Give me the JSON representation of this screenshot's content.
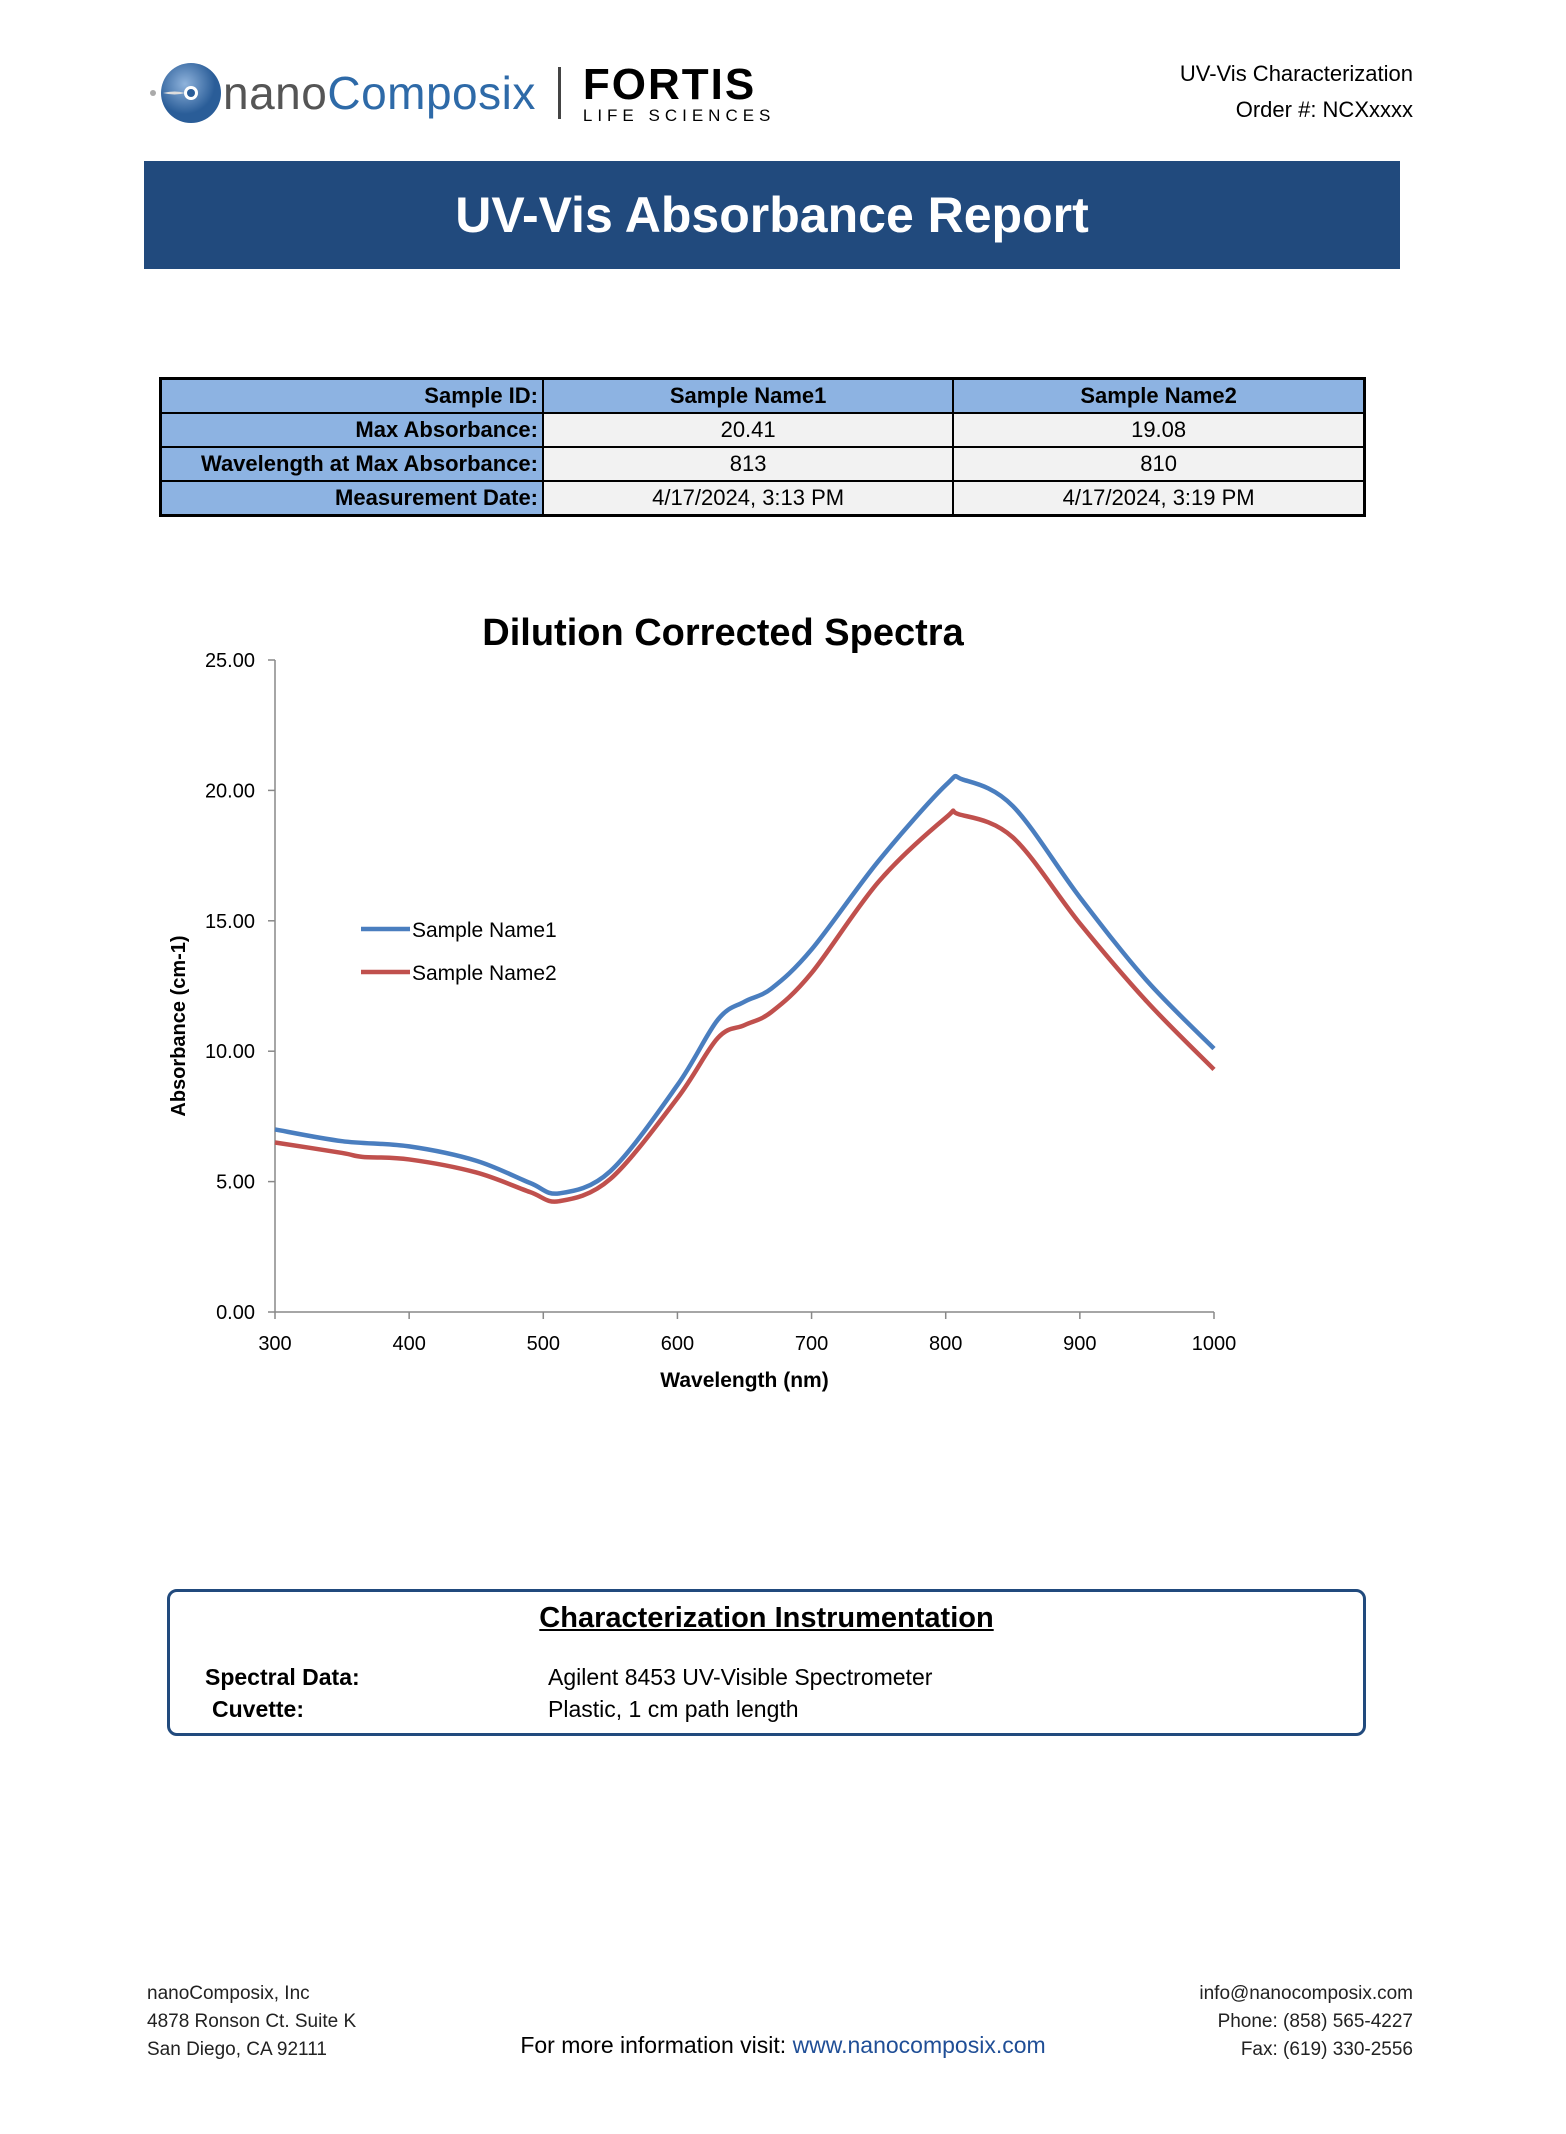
{
  "header": {
    "logo_nano": "nano",
    "logo_composix": "Composix",
    "logo_fortis": "FORTIS",
    "logo_fortis_sub": "LIFE SCIENCES",
    "report_type": "UV-Vis Characterization",
    "order": "Order #: NCXxxxx"
  },
  "title": "UV-Vis Absorbance Report",
  "summary_table": {
    "labels": [
      "Sample ID:",
      "Max Absorbance:",
      "Wavelength at Max Absorbance:",
      "Measurement Date:"
    ],
    "samples": [
      {
        "name": "Sample Name1",
        "max_absorbance": "20.41",
        "wavelength": "813",
        "date": "4/17/2024, 3:13 PM"
      },
      {
        "name": "Sample Name2",
        "max_absorbance": "19.08",
        "wavelength": "810",
        "date": "4/17/2024, 3:19 PM"
      }
    ]
  },
  "chart_data": {
    "type": "line",
    "title": "Dilution Corrected Spectra",
    "xlabel": "Wavelength (nm)",
    "ylabel": "Absorbance (cm-1)",
    "xlim": [
      300,
      1000
    ],
    "ylim": [
      0,
      25
    ],
    "xticks": [
      "300",
      "400",
      "500",
      "600",
      "700",
      "800",
      "900",
      "1000"
    ],
    "yticks": [
      "0.00",
      "5.00",
      "10.00",
      "15.00",
      "20.00",
      "25.00"
    ],
    "grid": false,
    "legend_position": "left-middle",
    "series": [
      {
        "name": "Sample Name1",
        "color": "#4a7ebf",
        "x": [
          300,
          350,
          400,
          450,
          490,
          512,
          550,
          600,
          630,
          650,
          670,
          700,
          750,
          800,
          813,
          850,
          900,
          950,
          1000
        ],
        "y": [
          7.0,
          6.55,
          6.35,
          5.8,
          4.95,
          4.55,
          5.4,
          8.7,
          11.2,
          11.9,
          12.4,
          13.9,
          17.3,
          20.2,
          20.41,
          19.4,
          15.9,
          12.7,
          10.1
        ]
      },
      {
        "name": "Sample Name2",
        "color": "#c0504d",
        "x": [
          300,
          350,
          365,
          400,
          450,
          490,
          512,
          550,
          600,
          630,
          650,
          670,
          700,
          750,
          800,
          810,
          850,
          900,
          950,
          1000
        ],
        "y": [
          6.5,
          6.1,
          5.95,
          5.85,
          5.35,
          4.6,
          4.25,
          5.1,
          8.2,
          10.5,
          11.0,
          11.5,
          13.0,
          16.5,
          18.95,
          19.08,
          18.2,
          14.9,
          11.9,
          9.3
        ]
      }
    ]
  },
  "instrumentation": {
    "title": "Characterization Instrumentation",
    "rows": [
      {
        "label": "Spectral Data:",
        "value": "Agilent 8453 UV-Visible Spectrometer"
      },
      {
        "label": "Cuvette:",
        "value": "Plastic, 1 cm path length"
      }
    ]
  },
  "footer": {
    "company": "nanoComposix, Inc",
    "address1": "4878 Ronson Ct. Suite K",
    "address2": "San Diego, CA 92111",
    "more_info": "For more information visit:",
    "website": "www.nanocomposix.com",
    "email": "info@nanocomposix.com",
    "phone": "Phone: (858) 565-4227",
    "fax": "Fax: (619) 330-2556"
  }
}
